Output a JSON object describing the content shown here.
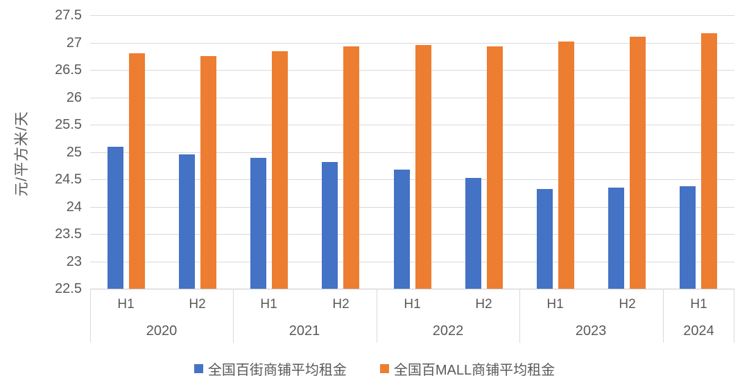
{
  "chart_data": {
    "type": "bar",
    "title": "",
    "ylabel": "元/平方米/天",
    "xlabel": "",
    "ylim": [
      22.5,
      27.5
    ],
    "ytick_step": 0.5,
    "yticks": [
      "27.5",
      "27",
      "26.5",
      "26",
      "25.5",
      "25",
      "24.5",
      "24",
      "23.5",
      "23",
      "22.5"
    ],
    "grid": true,
    "legend_position": "bottom",
    "groups": [
      {
        "year": "2020",
        "halves": [
          "H1",
          "H2"
        ]
      },
      {
        "year": "2021",
        "halves": [
          "H1",
          "H2"
        ]
      },
      {
        "year": "2022",
        "halves": [
          "H1",
          "H2"
        ]
      },
      {
        "year": "2023",
        "halves": [
          "H1",
          "H2"
        ]
      },
      {
        "year": "2024",
        "halves": [
          "H1"
        ]
      }
    ],
    "series": [
      {
        "name": "全国百街商铺平均租金",
        "color": "#4472C4",
        "values": [
          25.09,
          24.95,
          24.89,
          24.82,
          24.68,
          24.52,
          24.32,
          24.35,
          24.37
        ]
      },
      {
        "name": "全国百MALL商铺平均租金",
        "color": "#ED7D31",
        "values": [
          26.8,
          26.75,
          26.84,
          26.93,
          26.96,
          26.93,
          27.02,
          27.11,
          27.17
        ]
      }
    ]
  },
  "colors": {
    "background": "#FFFFFF",
    "gridline": "#D9D9D9",
    "axis_line": "#C8C8C8",
    "text": "#595959",
    "series_blue": "#4472C4",
    "series_orange": "#ED7D31"
  }
}
